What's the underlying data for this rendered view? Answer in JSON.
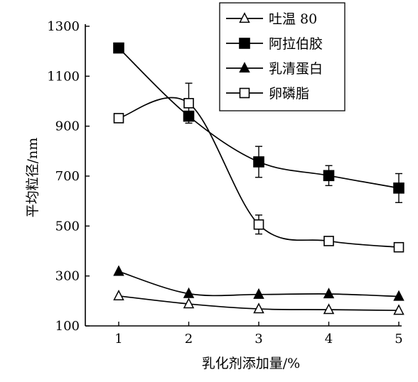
{
  "chart_data": {
    "type": "line",
    "title": "",
    "xlabel": "乳化剂添加量/%",
    "ylabel": "平均粒径/nm",
    "x": [
      1,
      2,
      3,
      4,
      5
    ],
    "xlim": [
      1,
      5
    ],
    "ylim": [
      100,
      1300
    ],
    "x_ticks": [
      "1",
      "2",
      "3",
      "4",
      "5"
    ],
    "y_ticks": [
      "100",
      "300",
      "500",
      "700",
      "900",
      "1100",
      "1300"
    ],
    "grid": false,
    "legend_position": "top-right",
    "series": [
      {
        "name": "吐温 80",
        "marker": "open-triangle",
        "values": [
          220,
          188,
          168,
          165,
          162
        ],
        "errors": [
          0,
          0,
          0,
          0,
          0
        ]
      },
      {
        "name": "阿拉伯胶",
        "marker": "filled-square",
        "values": [
          1213,
          940,
          757,
          702,
          652
        ],
        "errors": [
          0,
          0,
          62,
          40,
          58
        ]
      },
      {
        "name": "乳清蛋白",
        "marker": "filled-triangle",
        "values": [
          318,
          229,
          226,
          228,
          218
        ],
        "errors": [
          0,
          0,
          0,
          0,
          0
        ]
      },
      {
        "name": "卵磷脂",
        "marker": "open-square",
        "values": [
          932,
          992,
          506,
          440,
          415
        ],
        "errors": [
          0,
          80,
          38,
          0,
          0
        ]
      }
    ]
  }
}
